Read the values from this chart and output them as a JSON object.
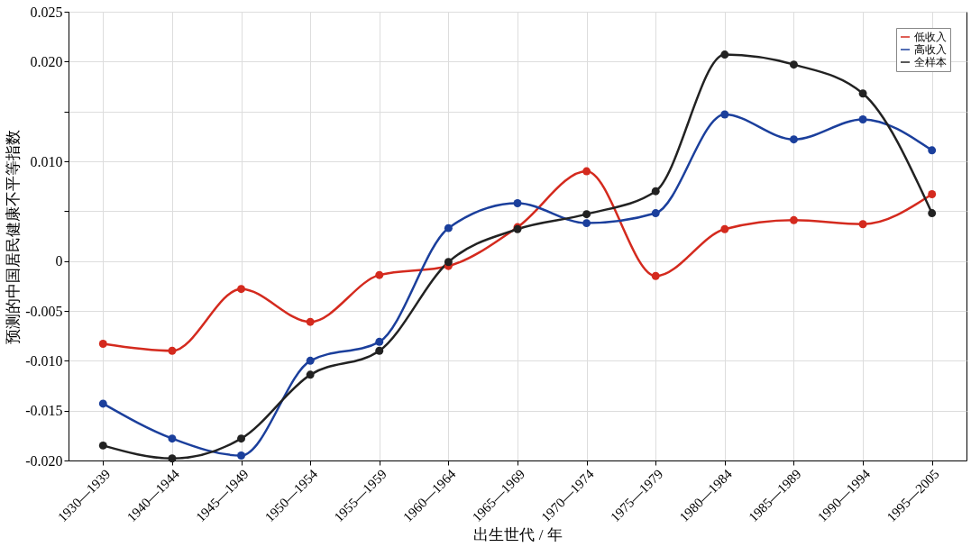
{
  "chart_data": {
    "type": "line",
    "xlabel": "出生世代 / 年",
    "ylabel": "预测的中国居民健康不平等指数",
    "categories": [
      "1930—1939",
      "1940—1944",
      "1945—1949",
      "1950—1954",
      "1955—1959",
      "1960—1964",
      "1965—1969",
      "1970—1974",
      "1975—1979",
      "1980—1984",
      "1985—1989",
      "1990—1994",
      "1995—2005"
    ],
    "series": [
      {
        "name": "低收入",
        "color": "#d42a1e",
        "values": [
          -0.0083,
          -0.009,
          -0.0028,
          -0.0061,
          -0.0014,
          -0.0005,
          0.0034,
          0.009,
          -0.0015,
          0.0032,
          0.0041,
          0.0037,
          0.0067
        ]
      },
      {
        "name": "高收入",
        "color": "#1b3f9c",
        "values": [
          -0.0143,
          -0.0178,
          -0.0195,
          -0.01,
          -0.0081,
          0.0033,
          0.0058,
          0.0038,
          0.0048,
          0.0147,
          0.0122,
          0.0142,
          0.0111
        ]
      },
      {
        "name": "全样本",
        "color": "#222222",
        "values": [
          -0.0185,
          -0.0198,
          -0.0178,
          -0.0114,
          -0.009,
          -0.0001,
          0.0032,
          0.0047,
          0.007,
          0.0207,
          0.0197,
          0.0168,
          0.0048
        ]
      }
    ],
    "ylim": [
      -0.02,
      0.025
    ],
    "yticks": [
      {
        "value": 0.025,
        "label": "0.025"
      },
      {
        "value": 0.02,
        "label": "0.020"
      },
      {
        "value": 0.015,
        "label": null
      },
      {
        "value": 0.01,
        "label": "0.010"
      },
      {
        "value": 0.005,
        "label": null
      },
      {
        "value": 0,
        "label": "0"
      },
      {
        "value": -0.005,
        "label": "-0.005"
      },
      {
        "value": -0.01,
        "label": "-0.010"
      },
      {
        "value": -0.015,
        "label": "-0.015"
      },
      {
        "value": -0.02,
        "label": "-0.020"
      }
    ],
    "grid": true,
    "legend": "top right",
    "marker": "circle",
    "line_style": "solid"
  }
}
